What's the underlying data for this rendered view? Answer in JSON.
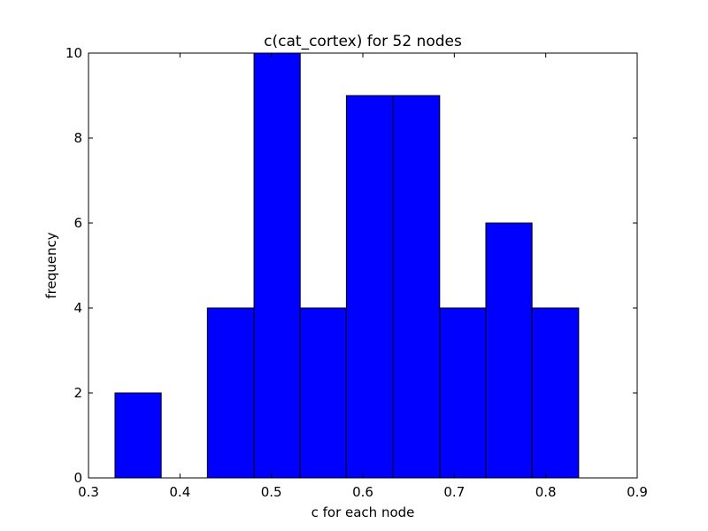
{
  "chart_data": {
    "type": "bar",
    "title": "c(cat_cortex) for 52 nodes",
    "xlabel": "c for each node",
    "ylabel": "frequency",
    "xlim": [
      0.3,
      0.9
    ],
    "ylim": [
      0,
      10
    ],
    "x_ticks": [
      "0.3",
      "0.4",
      "0.5",
      "0.6",
      "0.7",
      "0.8",
      "0.9"
    ],
    "y_ticks": [
      "0",
      "2",
      "4",
      "6",
      "8",
      "10"
    ],
    "bin_edges": [
      0.329,
      0.3795,
      0.43,
      0.481,
      0.5315,
      0.582,
      0.633,
      0.684,
      0.7345,
      0.785,
      0.836
    ],
    "values": [
      2,
      0,
      4,
      10,
      4,
      9,
      9,
      4,
      6,
      4
    ],
    "bar_color": "#0000ff",
    "edge_color": "#000000",
    "grid": false
  }
}
